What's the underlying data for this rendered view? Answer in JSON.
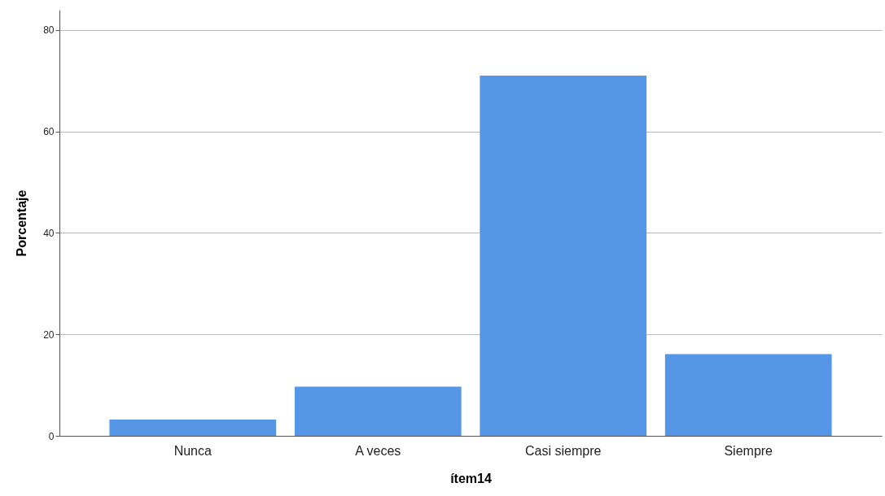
{
  "chart_data": {
    "type": "bar",
    "xlabel": "ítem14",
    "ylabel": "Porcentaje",
    "categories": [
      "Nunca",
      "A veces",
      "Casi siempre",
      "Siempre"
    ],
    "values": [
      3.2,
      9.7,
      71.0,
      16.1
    ],
    "color": "#5596e6",
    "ylim": [
      0,
      84
    ],
    "yticks": [
      0,
      20,
      40,
      60,
      80
    ],
    "grid": "y"
  }
}
